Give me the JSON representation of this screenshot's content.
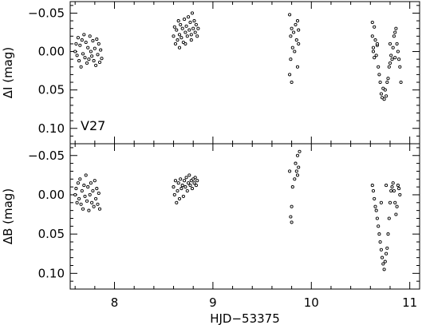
{
  "chart_data": {
    "type": "scatter",
    "xlabel": "HJD−53375",
    "xlim": [
      7.55,
      11.1
    ],
    "x_ticks": [
      8,
      9,
      10,
      11
    ],
    "x_tick_labels": [
      "8",
      "9",
      "10",
      "11"
    ],
    "panels": [
      {
        "id": "top",
        "ylabel": "ΔI (mag)",
        "ylim": [
          -0.065,
          0.12
        ],
        "y_inverted": true,
        "y_ticks": [
          -0.05,
          0.0,
          0.05,
          0.1
        ],
        "y_tick_labels": [
          "−0.05",
          "0.00",
          "0.05",
          "0.10"
        ],
        "annotation": "V27",
        "points": [
          [
            7.6,
            0.0
          ],
          [
            7.61,
            -0.01
          ],
          [
            7.62,
            0.005
          ],
          [
            7.63,
            -0.018
          ],
          [
            7.64,
            0.012
          ],
          [
            7.65,
            -0.008
          ],
          [
            7.66,
            0.02
          ],
          [
            7.67,
            -0.015
          ],
          [
            7.68,
            0.003
          ],
          [
            7.69,
            -0.022
          ],
          [
            7.7,
            0.008
          ],
          [
            7.71,
            -0.012
          ],
          [
            7.72,
            0.015
          ],
          [
            7.73,
            -0.005
          ],
          [
            7.74,
            0.01
          ],
          [
            7.75,
            -0.02
          ],
          [
            7.76,
            0.0
          ],
          [
            7.77,
            0.006
          ],
          [
            7.78,
            -0.014
          ],
          [
            7.79,
            0.012
          ],
          [
            7.8,
            -0.004
          ],
          [
            7.81,
            0.018
          ],
          [
            7.82,
            -0.016
          ],
          [
            7.83,
            0.004
          ],
          [
            7.84,
            -0.01
          ],
          [
            7.85,
            0.014
          ],
          [
            7.86,
            -0.002
          ],
          [
            7.87,
            0.009
          ],
          [
            8.6,
            -0.02
          ],
          [
            8.61,
            -0.032
          ],
          [
            8.62,
            -0.01
          ],
          [
            8.63,
            -0.028
          ],
          [
            8.64,
            -0.015
          ],
          [
            8.65,
            -0.04
          ],
          [
            8.66,
            -0.022
          ],
          [
            8.67,
            -0.035
          ],
          [
            8.68,
            -0.018
          ],
          [
            8.69,
            -0.03
          ],
          [
            8.7,
            -0.012
          ],
          [
            8.71,
            -0.042
          ],
          [
            8.72,
            -0.025
          ],
          [
            8.73,
            -0.033
          ],
          [
            8.74,
            -0.02
          ],
          [
            8.75,
            -0.045
          ],
          [
            8.76,
            -0.028
          ],
          [
            8.77,
            -0.038
          ],
          [
            8.78,
            -0.022
          ],
          [
            8.79,
            -0.05
          ],
          [
            8.8,
            -0.03
          ],
          [
            8.81,
            -0.04
          ],
          [
            8.82,
            -0.025
          ],
          [
            8.83,
            -0.035
          ],
          [
            8.84,
            -0.02
          ],
          [
            8.85,
            -0.03
          ],
          [
            8.66,
            -0.005
          ],
          [
            8.72,
            -0.01
          ],
          [
            8.78,
            -0.015
          ],
          [
            9.78,
            -0.048
          ],
          [
            9.78,
            0.03
          ],
          [
            9.79,
            -0.02
          ],
          [
            9.79,
            0.01
          ],
          [
            9.8,
            -0.03
          ],
          [
            9.81,
            -0.005
          ],
          [
            9.82,
            -0.025
          ],
          [
            9.83,
            0.0
          ],
          [
            9.84,
            -0.035
          ],
          [
            9.85,
            -0.015
          ],
          [
            9.86,
            -0.04
          ],
          [
            9.86,
            0.02
          ],
          [
            9.87,
            -0.01
          ],
          [
            9.87,
            -0.028
          ],
          [
            9.8,
            0.04
          ],
          [
            10.62,
            -0.038
          ],
          [
            10.62,
            -0.02
          ],
          [
            10.63,
            -0.005
          ],
          [
            10.63,
            0.0
          ],
          [
            10.64,
            -0.032
          ],
          [
            10.64,
            0.008
          ],
          [
            10.65,
            -0.015
          ],
          [
            10.66,
            0.005
          ],
          [
            10.67,
            -0.008
          ],
          [
            10.67,
            -0.01
          ],
          [
            10.68,
            0.02
          ],
          [
            10.69,
            0.03
          ],
          [
            10.7,
            0.04
          ],
          [
            10.71,
            0.055
          ],
          [
            10.72,
            0.06
          ],
          [
            10.73,
            0.048
          ],
          [
            10.74,
            0.062
          ],
          [
            10.75,
            0.05
          ],
          [
            10.76,
            0.058
          ],
          [
            10.77,
            0.04
          ],
          [
            10.78,
            0.035
          ],
          [
            10.79,
            0.02
          ],
          [
            10.8,
            0.015
          ],
          [
            10.81,
            0.005
          ],
          [
            10.82,
            0.01
          ],
          [
            10.83,
            -0.005
          ],
          [
            10.84,
            -0.02
          ],
          [
            10.85,
            -0.025
          ],
          [
            10.86,
            -0.03
          ],
          [
            10.87,
            -0.01
          ],
          [
            10.88,
            0.0
          ],
          [
            10.89,
            0.01
          ],
          [
            10.9,
            0.02
          ],
          [
            10.91,
            0.04
          ],
          [
            10.85,
            0.008
          ],
          [
            10.8,
            -0.01
          ]
        ]
      },
      {
        "id": "bottom",
        "ylabel": "ΔB (mag)",
        "ylim": [
          -0.065,
          0.12
        ],
        "y_inverted": true,
        "y_ticks": [
          -0.05,
          0.0,
          0.05,
          0.1
        ],
        "y_tick_labels": [
          "−0.05",
          "0.00",
          "0.05",
          "0.10"
        ],
        "points": [
          [
            7.6,
            0.0
          ],
          [
            7.61,
            -0.008
          ],
          [
            7.62,
            0.01
          ],
          [
            7.63,
            -0.015
          ],
          [
            7.64,
            0.005
          ],
          [
            7.65,
            -0.02
          ],
          [
            7.66,
            0.012
          ],
          [
            7.67,
            -0.005
          ],
          [
            7.68,
            0.018
          ],
          [
            7.69,
            -0.012
          ],
          [
            7.7,
            0.002
          ],
          [
            7.71,
            -0.025
          ],
          [
            7.72,
            0.008
          ],
          [
            7.73,
            -0.01
          ],
          [
            7.74,
            0.02
          ],
          [
            7.75,
            0.0
          ],
          [
            7.76,
            -0.015
          ],
          [
            7.77,
            0.01
          ],
          [
            7.78,
            -0.005
          ],
          [
            7.79,
            0.015
          ],
          [
            7.8,
            -0.018
          ],
          [
            7.81,
            0.005
          ],
          [
            7.82,
            -0.008
          ],
          [
            7.83,
            0.012
          ],
          [
            7.84,
            -0.002
          ],
          [
            7.85,
            0.018
          ],
          [
            8.6,
            -0.01
          ],
          [
            8.61,
            0.0
          ],
          [
            8.62,
            -0.018
          ],
          [
            8.63,
            0.01
          ],
          [
            8.64,
            -0.005
          ],
          [
            8.65,
            -0.015
          ],
          [
            8.66,
            0.005
          ],
          [
            8.67,
            -0.02
          ],
          [
            8.68,
            -0.008
          ],
          [
            8.69,
            -0.012
          ],
          [
            8.7,
            0.002
          ],
          [
            8.71,
            -0.018
          ],
          [
            8.72,
            -0.01
          ],
          [
            8.73,
            -0.022
          ],
          [
            8.74,
            -0.005
          ],
          [
            8.75,
            -0.015
          ],
          [
            8.76,
            -0.025
          ],
          [
            8.77,
            -0.012
          ],
          [
            8.78,
            -0.018
          ],
          [
            8.79,
            -0.008
          ],
          [
            8.8,
            -0.02
          ],
          [
            8.81,
            -0.015
          ],
          [
            8.82,
            -0.022
          ],
          [
            8.83,
            -0.012
          ],
          [
            8.84,
            -0.018
          ],
          [
            9.78,
            -0.03
          ],
          [
            9.79,
            0.028
          ],
          [
            9.8,
            0.035
          ],
          [
            9.81,
            -0.01
          ],
          [
            9.83,
            -0.02
          ],
          [
            9.84,
            -0.04
          ],
          [
            9.85,
            -0.03
          ],
          [
            9.86,
            -0.025
          ],
          [
            9.86,
            -0.05
          ],
          [
            9.87,
            -0.035
          ],
          [
            9.88,
            -0.055
          ],
          [
            9.8,
            0.015
          ],
          [
            10.62,
            -0.012
          ],
          [
            10.63,
            -0.005
          ],
          [
            10.64,
            0.005
          ],
          [
            10.65,
            0.015
          ],
          [
            10.66,
            0.02
          ],
          [
            10.67,
            0.03
          ],
          [
            10.68,
            0.04
          ],
          [
            10.69,
            0.05
          ],
          [
            10.7,
            0.06
          ],
          [
            10.71,
            0.07
          ],
          [
            10.72,
            0.08
          ],
          [
            10.73,
            0.088
          ],
          [
            10.74,
            0.095
          ],
          [
            10.75,
            0.085
          ],
          [
            10.76,
            0.075
          ],
          [
            10.77,
            0.068
          ],
          [
            10.78,
            0.05
          ],
          [
            10.79,
            0.03
          ],
          [
            10.8,
            0.01
          ],
          [
            10.81,
            -0.005
          ],
          [
            10.82,
            -0.01
          ],
          [
            10.83,
            -0.015
          ],
          [
            10.84,
            -0.005
          ],
          [
            10.85,
            0.01
          ],
          [
            10.86,
            0.025
          ],
          [
            10.87,
            0.015
          ],
          [
            10.88,
            -0.012
          ],
          [
            10.89,
            -0.008
          ],
          [
            10.9,
            0.0
          ],
          [
            10.71,
            0.01
          ],
          [
            10.76,
            -0.012
          ]
        ]
      }
    ]
  }
}
